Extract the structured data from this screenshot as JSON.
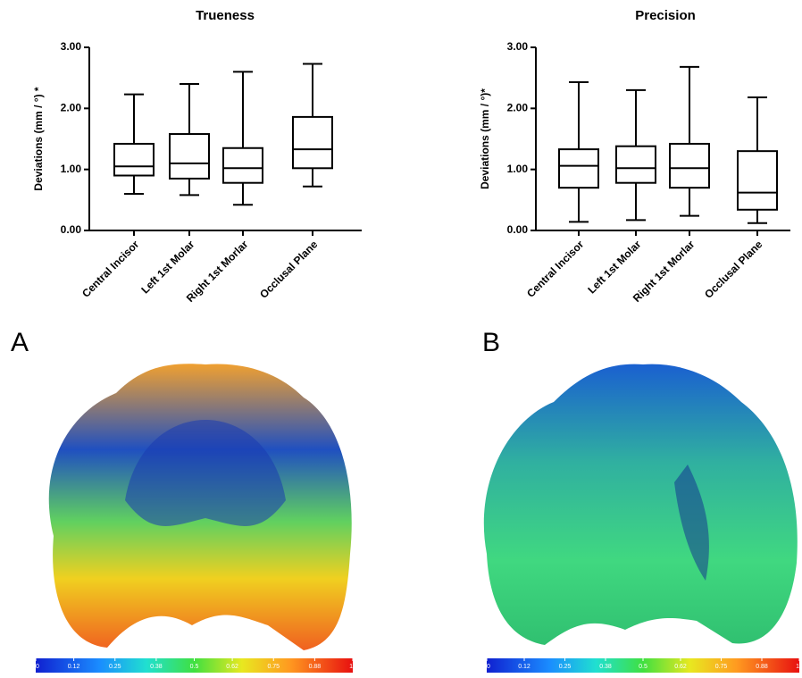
{
  "chart_data": [
    {
      "type": "box",
      "title": "Trueness",
      "y_label": "Deviations (mm / °) *",
      "categories": [
        "Central Incisor",
        "Left 1st Molar",
        "Right 1st Morlar",
        "Occlusal Plane"
      ],
      "min": [
        0.6,
        0.58,
        0.42,
        0.72
      ],
      "q1": [
        0.9,
        0.85,
        0.78,
        1.02
      ],
      "median": [
        1.05,
        1.1,
        1.02,
        1.33
      ],
      "q3": [
        1.42,
        1.58,
        1.35,
        1.86
      ],
      "max": [
        2.23,
        2.4,
        2.6,
        2.73
      ],
      "color": "#000000",
      "ylim": [
        0,
        3
      ],
      "yticks": [
        {
          "value": 0,
          "label": "0.00"
        },
        {
          "value": 1,
          "label": "1.00"
        },
        {
          "value": 2,
          "label": "2.00"
        },
        {
          "value": 3,
          "label": "3.00"
        }
      ]
    },
    {
      "type": "box",
      "title": "Precision",
      "y_label": "Deviations (mm / °)*",
      "categories": [
        "Central Incisor",
        "Left 1st Molar",
        "Right 1st Morlar",
        "Occlusal Plane"
      ],
      "min": [
        0.14,
        0.17,
        0.24,
        0.12
      ],
      "q1": [
        0.7,
        0.78,
        0.7,
        0.34
      ],
      "median": [
        1.06,
        1.02,
        1.02,
        0.62
      ],
      "q3": [
        1.33,
        1.38,
        1.42,
        1.3
      ],
      "max": [
        2.43,
        2.3,
        2.68,
        2.18
      ],
      "color": "#000000",
      "ylim": [
        0,
        3
      ],
      "yticks": [
        {
          "value": 0,
          "label": "0.00"
        },
        {
          "value": 1,
          "label": "1.00"
        },
        {
          "value": 2,
          "label": "2.00"
        },
        {
          "value": 3,
          "label": "3.00"
        }
      ]
    }
  ],
  "panels": [
    {
      "label": "A",
      "scale": {
        "lim": [
          0,
          1
        ],
        "ticks": [
          0,
          0.12,
          0.25,
          0.38,
          0.5,
          0.62,
          0.75,
          0.88,
          1
        ]
      }
    },
    {
      "label": "B",
      "scale": {
        "lim": [
          0,
          1
        ],
        "ticks": [
          0,
          0.12,
          0.25,
          0.38,
          0.5,
          0.62,
          0.75,
          0.88,
          1
        ]
      }
    }
  ]
}
